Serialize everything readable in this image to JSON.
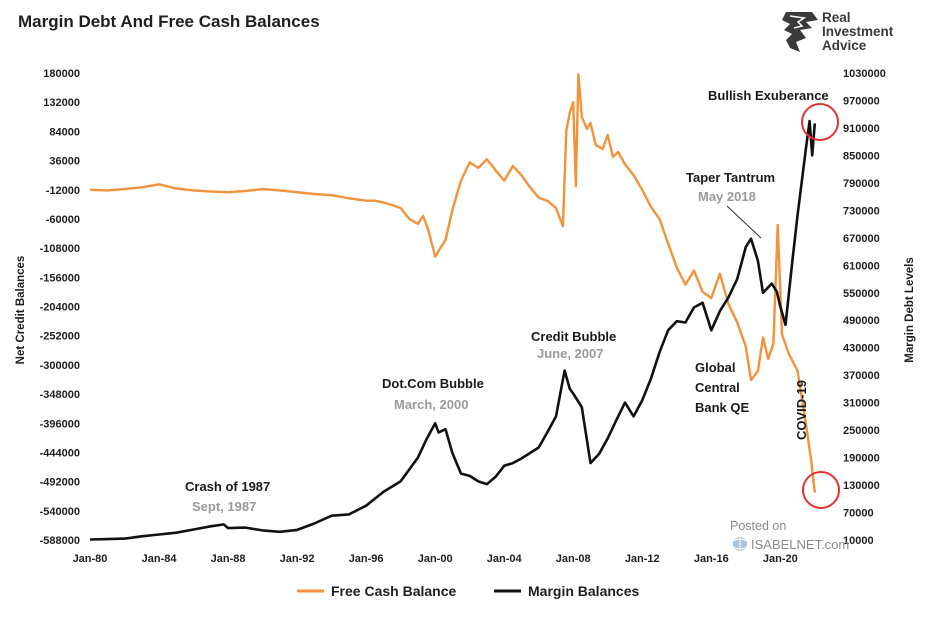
{
  "chart_data": {
    "type": "line",
    "title": "Margin Debt And Free Cash Balances",
    "ylabel_left": "Net Credit Balances",
    "ylabel_right": "Margin Debt Levels",
    "y_left_range": [
      -588000,
      180000
    ],
    "y_right_range": [
      10000,
      1030000
    ],
    "y_left_ticks": [
      180000,
      132000,
      84000,
      36000,
      -12000,
      -60000,
      -108000,
      -156000,
      -204000,
      -252000,
      -300000,
      -348000,
      -396000,
      -444000,
      -492000,
      -540000,
      -588000
    ],
    "y_right_ticks": [
      1030000,
      970000,
      910000,
      850000,
      790000,
      730000,
      670000,
      610000,
      550000,
      490000,
      430000,
      370000,
      310000,
      250000,
      190000,
      130000,
      70000,
      10000
    ],
    "x_range": [
      1980,
      2022.3
    ],
    "x_ticks": [
      {
        "label": "Jan-80",
        "x": 1980
      },
      {
        "label": "Jan-84",
        "x": 1984
      },
      {
        "label": "Jan-88",
        "x": 1988
      },
      {
        "label": "Jan-92",
        "x": 1992
      },
      {
        "label": "Jan-96",
        "x": 1996
      },
      {
        "label": "Jan-00",
        "x": 2000
      },
      {
        "label": "Jan-04",
        "x": 2004
      },
      {
        "label": "Jan-08",
        "x": 2008
      },
      {
        "label": "Jan-12",
        "x": 2012
      },
      {
        "label": "Jan-16",
        "x": 2016
      },
      {
        "label": "Jan-20",
        "x": 2020
      }
    ],
    "legend_position": "bottom",
    "series": [
      {
        "name": "Free Cash Balance",
        "axis": "left",
        "color": "#f2923a",
        "points": [
          [
            1980.0,
            -12000
          ],
          [
            1981.0,
            -13000
          ],
          [
            1982.0,
            -11000
          ],
          [
            1983.0,
            -8000
          ],
          [
            1984.0,
            -3000
          ],
          [
            1985.0,
            -10000
          ],
          [
            1986.0,
            -13000
          ],
          [
            1987.0,
            -15000
          ],
          [
            1988.0,
            -16000
          ],
          [
            1989.0,
            -14000
          ],
          [
            1990.0,
            -11000
          ],
          [
            1991.0,
            -13000
          ],
          [
            1992.0,
            -16000
          ],
          [
            1993.0,
            -19000
          ],
          [
            1994.0,
            -21000
          ],
          [
            1995.0,
            -26000
          ],
          [
            1996.0,
            -30000
          ],
          [
            1996.5,
            -30000
          ],
          [
            1997.0,
            -33000
          ],
          [
            1997.5,
            -37000
          ],
          [
            1998.0,
            -42000
          ],
          [
            1998.5,
            -60000
          ],
          [
            1999.0,
            -68000
          ],
          [
            1999.3,
            -55000
          ],
          [
            1999.6,
            -78000
          ],
          [
            2000.0,
            -122000
          ],
          [
            2000.3,
            -108000
          ],
          [
            2000.6,
            -95000
          ],
          [
            2001.0,
            -45000
          ],
          [
            2001.5,
            3000
          ],
          [
            2002.0,
            33000
          ],
          [
            2002.5,
            24000
          ],
          [
            2003.0,
            38000
          ],
          [
            2003.5,
            20000
          ],
          [
            2004.0,
            3000
          ],
          [
            2004.5,
            27000
          ],
          [
            2005.0,
            12000
          ],
          [
            2005.5,
            -8000
          ],
          [
            2006.0,
            -25000
          ],
          [
            2006.5,
            -30000
          ],
          [
            2007.0,
            -42000
          ],
          [
            2007.4,
            -72000
          ],
          [
            2007.6,
            85000
          ],
          [
            2007.8,
            115000
          ],
          [
            2008.0,
            132000
          ],
          [
            2008.15,
            -6000
          ],
          [
            2008.3,
            178000
          ],
          [
            2008.5,
            108000
          ],
          [
            2008.8,
            88000
          ],
          [
            2009.0,
            98000
          ],
          [
            2009.3,
            62000
          ],
          [
            2009.7,
            55000
          ],
          [
            2010.0,
            78000
          ],
          [
            2010.3,
            42000
          ],
          [
            2010.6,
            50000
          ],
          [
            2011.0,
            30000
          ],
          [
            2011.5,
            12000
          ],
          [
            2012.0,
            -12000
          ],
          [
            2012.5,
            -40000
          ],
          [
            2013.0,
            -60000
          ],
          [
            2013.5,
            -100000
          ],
          [
            2014.0,
            -140000
          ],
          [
            2014.5,
            -168000
          ],
          [
            2015.0,
            -145000
          ],
          [
            2015.5,
            -180000
          ],
          [
            2016.0,
            -190000
          ],
          [
            2016.5,
            -150000
          ],
          [
            2017.0,
            -200000
          ],
          [
            2017.5,
            -230000
          ],
          [
            2018.0,
            -270000
          ],
          [
            2018.3,
            -325000
          ],
          [
            2018.7,
            -310000
          ],
          [
            2019.0,
            -255000
          ],
          [
            2019.3,
            -290000
          ],
          [
            2019.6,
            -265000
          ],
          [
            2019.85,
            -70000
          ],
          [
            2020.1,
            -250000
          ],
          [
            2020.5,
            -282000
          ],
          [
            2021.0,
            -310000
          ],
          [
            2021.5,
            -400000
          ],
          [
            2021.8,
            -460000
          ],
          [
            2022.0,
            -510000
          ]
        ]
      },
      {
        "name": "Margin Balances",
        "axis": "right",
        "color": "#111111",
        "points": [
          [
            1980.0,
            11000
          ],
          [
            1981.0,
            12000
          ],
          [
            1982.0,
            13000
          ],
          [
            1983.0,
            18000
          ],
          [
            1984.0,
            22000
          ],
          [
            1985.0,
            26000
          ],
          [
            1986.0,
            33000
          ],
          [
            1987.0,
            40000
          ],
          [
            1987.75,
            44000
          ],
          [
            1988.0,
            36000
          ],
          [
            1989.0,
            37000
          ],
          [
            1990.0,
            31000
          ],
          [
            1991.0,
            28000
          ],
          [
            1992.0,
            32000
          ],
          [
            1993.0,
            46000
          ],
          [
            1994.0,
            63000
          ],
          [
            1995.0,
            66000
          ],
          [
            1996.0,
            85000
          ],
          [
            1997.0,
            115000
          ],
          [
            1998.0,
            138000
          ],
          [
            1999.0,
            190000
          ],
          [
            1999.5,
            230000
          ],
          [
            2000.0,
            265000
          ],
          [
            2000.2,
            245000
          ],
          [
            2000.6,
            252000
          ],
          [
            2001.0,
            200000
          ],
          [
            2001.5,
            155000
          ],
          [
            2002.0,
            150000
          ],
          [
            2002.5,
            138000
          ],
          [
            2003.0,
            132000
          ],
          [
            2003.5,
            148000
          ],
          [
            2004.0,
            172000
          ],
          [
            2004.5,
            178000
          ],
          [
            2005.0,
            188000
          ],
          [
            2006.0,
            212000
          ],
          [
            2006.5,
            245000
          ],
          [
            2007.0,
            280000
          ],
          [
            2007.5,
            380000
          ],
          [
            2007.8,
            340000
          ],
          [
            2008.0,
            330000
          ],
          [
            2008.5,
            300000
          ],
          [
            2009.0,
            178000
          ],
          [
            2009.5,
            198000
          ],
          [
            2010.0,
            232000
          ],
          [
            2010.5,
            272000
          ],
          [
            2011.0,
            310000
          ],
          [
            2011.5,
            280000
          ],
          [
            2012.0,
            315000
          ],
          [
            2012.5,
            362000
          ],
          [
            2013.0,
            420000
          ],
          [
            2013.5,
            468000
          ],
          [
            2014.0,
            488000
          ],
          [
            2014.5,
            485000
          ],
          [
            2015.0,
            518000
          ],
          [
            2015.5,
            528000
          ],
          [
            2016.0,
            468000
          ],
          [
            2016.5,
            510000
          ],
          [
            2017.0,
            540000
          ],
          [
            2017.5,
            580000
          ],
          [
            2018.0,
            650000
          ],
          [
            2018.3,
            668000
          ],
          [
            2018.7,
            620000
          ],
          [
            2019.0,
            550000
          ],
          [
            2019.5,
            570000
          ],
          [
            2019.8,
            552000
          ],
          [
            2020.0,
            520000
          ],
          [
            2020.3,
            480000
          ],
          [
            2020.7,
            620000
          ],
          [
            2021.0,
            720000
          ],
          [
            2021.5,
            870000
          ],
          [
            2021.7,
            925000
          ],
          [
            2021.85,
            850000
          ],
          [
            2022.0,
            920000
          ]
        ]
      }
    ],
    "annotations": [
      {
        "name": "ann-crash-1987",
        "text": "Crash of 1987",
        "sub": "Sept, 1987"
      },
      {
        "name": "ann-dotcom-bubble",
        "text": "Dot.Com Bubble",
        "sub": "March, 2000"
      },
      {
        "name": "ann-credit-bubble",
        "text": "Credit Bubble",
        "sub": "June, 2007"
      },
      {
        "name": "ann-global-qe",
        "lines": [
          "Global",
          "Central",
          "Bank QE"
        ]
      },
      {
        "name": "ann-taper-tantrum",
        "text": "Taper Tantrum",
        "sub": "May 2018"
      },
      {
        "name": "ann-bullish-exuberance",
        "text": "Bullish Exuberance"
      },
      {
        "name": "ann-covid",
        "text": "COVID-19"
      }
    ]
  },
  "logo": {
    "line1": "Real",
    "line2": "Investment",
    "line3": "Advice"
  },
  "watermark": {
    "line1": "Posted on",
    "line2": "ISABELNET.com"
  },
  "colors": {
    "free_cash": "#f2923a",
    "margin": "#111111",
    "highlight": "#e0322e"
  }
}
